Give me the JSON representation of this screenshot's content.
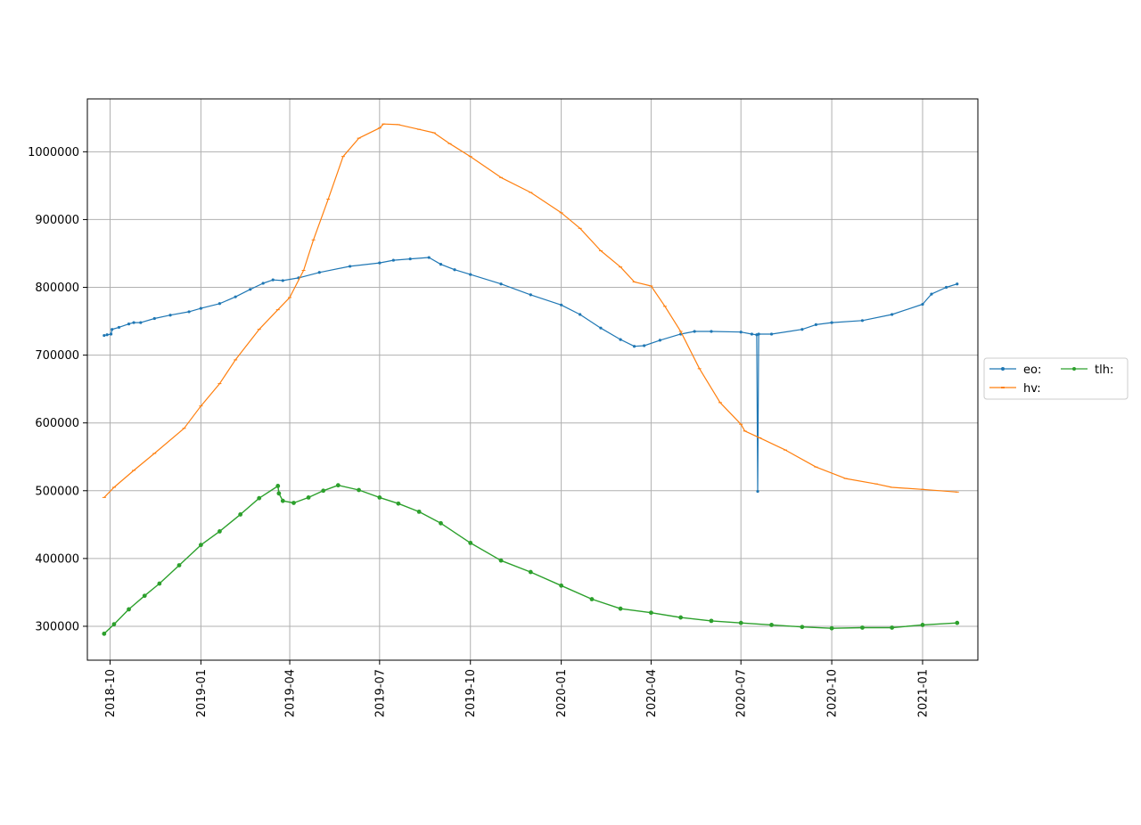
{
  "chart_data": {
    "type": "line",
    "title": "",
    "xlabel": "",
    "ylabel": "",
    "x_type": "date",
    "xlim": [
      "2018-09-08",
      "2021-02-26"
    ],
    "ylim": [
      250000,
      1078000
    ],
    "grid": true,
    "legend_placement": "outside-right",
    "legend_columns": 2,
    "x_ticks": [
      "2018-10",
      "2019-01",
      "2019-04",
      "2019-07",
      "2019-10",
      "2020-01",
      "2020-04",
      "2020-07",
      "2020-10",
      "2021-01"
    ],
    "y_ticks": [
      300000,
      400000,
      500000,
      600000,
      700000,
      800000,
      900000,
      1000000
    ],
    "series": [
      {
        "name": "eo:",
        "color": "#1f77b4",
        "marker": "dot",
        "points": [
          [
            "2018-09-25",
            729000
          ],
          [
            "2018-09-28",
            730000
          ],
          [
            "2018-10-02",
            731000
          ],
          [
            "2018-10-03",
            738000
          ],
          [
            "2018-10-10",
            741000
          ],
          [
            "2018-10-20",
            746000
          ],
          [
            "2018-10-25",
            748000
          ],
          [
            "2018-11-01",
            748000
          ],
          [
            "2018-11-15",
            754000
          ],
          [
            "2018-12-01",
            759000
          ],
          [
            "2018-12-20",
            764000
          ],
          [
            "2019-01-01",
            769000
          ],
          [
            "2019-01-20",
            776000
          ],
          [
            "2019-02-05",
            786000
          ],
          [
            "2019-02-20",
            797000
          ],
          [
            "2019-03-05",
            806000
          ],
          [
            "2019-03-15",
            811000
          ],
          [
            "2019-03-25",
            810000
          ],
          [
            "2019-04-10",
            814000
          ],
          [
            "2019-05-01",
            822000
          ],
          [
            "2019-06-01",
            831000
          ],
          [
            "2019-07-01",
            836000
          ],
          [
            "2019-07-15",
            840000
          ],
          [
            "2019-08-01",
            842000
          ],
          [
            "2019-08-20",
            844000
          ],
          [
            "2019-09-01",
            834000
          ],
          [
            "2019-09-15",
            826000
          ],
          [
            "2019-10-01",
            819000
          ],
          [
            "2019-11-01",
            805000
          ],
          [
            "2019-12-01",
            789000
          ],
          [
            "2020-01-01",
            774000
          ],
          [
            "2020-01-20",
            760000
          ],
          [
            "2020-02-10",
            740000
          ],
          [
            "2020-03-01",
            723000
          ],
          [
            "2020-03-15",
            713000
          ],
          [
            "2020-03-25",
            714000
          ],
          [
            "2020-04-10",
            722000
          ],
          [
            "2020-05-01",
            731000
          ],
          [
            "2020-05-15",
            735000
          ],
          [
            "2020-06-01",
            735000
          ],
          [
            "2020-07-01",
            734000
          ],
          [
            "2020-07-12",
            731000
          ],
          [
            "2020-07-17",
            730000
          ],
          [
            "2020-07-18",
            499000
          ],
          [
            "2020-07-19",
            731000
          ],
          [
            "2020-08-01",
            731000
          ],
          [
            "2020-09-01",
            738000
          ],
          [
            "2020-09-15",
            745000
          ],
          [
            "2020-10-01",
            748000
          ],
          [
            "2020-11-01",
            751000
          ],
          [
            "2020-12-01",
            760000
          ],
          [
            "2021-01-01",
            775000
          ],
          [
            "2021-01-10",
            790000
          ],
          [
            "2021-01-25",
            800000
          ],
          [
            "2021-02-05",
            805000
          ]
        ]
      },
      {
        "name": "hv:",
        "color": "#ff7f0e",
        "marker": "hline",
        "points": [
          [
            "2018-09-25",
            490000
          ],
          [
            "2018-10-05",
            505000
          ],
          [
            "2018-10-25",
            530000
          ],
          [
            "2018-11-15",
            555000
          ],
          [
            "2018-12-15",
            592000
          ],
          [
            "2019-01-01",
            625000
          ],
          [
            "2019-01-20",
            658000
          ],
          [
            "2019-02-05",
            693000
          ],
          [
            "2019-03-01",
            738000
          ],
          [
            "2019-03-20",
            767000
          ],
          [
            "2019-04-01",
            785000
          ],
          [
            "2019-04-15",
            825000
          ],
          [
            "2019-04-25",
            870000
          ],
          [
            "2019-05-10",
            930000
          ],
          [
            "2019-05-25",
            993000
          ],
          [
            "2019-06-10",
            1020000
          ],
          [
            "2019-07-01",
            1035000
          ],
          [
            "2019-07-05",
            1041000
          ],
          [
            "2019-07-20",
            1040000
          ],
          [
            "2019-08-10",
            1033000
          ],
          [
            "2019-08-25",
            1028000
          ],
          [
            "2019-09-10",
            1012000
          ],
          [
            "2019-10-01",
            993000
          ],
          [
            "2019-11-01",
            962000
          ],
          [
            "2019-12-01",
            940000
          ],
          [
            "2020-01-01",
            910000
          ],
          [
            "2020-01-20",
            887000
          ],
          [
            "2020-02-10",
            854000
          ],
          [
            "2020-03-01",
            830000
          ],
          [
            "2020-03-15",
            808000
          ],
          [
            "2020-04-01",
            802000
          ],
          [
            "2020-04-15",
            772000
          ],
          [
            "2020-05-01",
            735000
          ],
          [
            "2020-05-20",
            680000
          ],
          [
            "2020-06-10",
            630000
          ],
          [
            "2020-07-01",
            598000
          ],
          [
            "2020-07-05",
            588000
          ],
          [
            "2020-07-20",
            578000
          ],
          [
            "2020-08-15",
            560000
          ],
          [
            "2020-09-15",
            535000
          ],
          [
            "2020-10-15",
            518000
          ],
          [
            "2020-11-15",
            510000
          ],
          [
            "2020-12-01",
            505000
          ],
          [
            "2021-01-01",
            502000
          ],
          [
            "2021-02-05",
            498000
          ]
        ]
      },
      {
        "name": "tlh:",
        "color": "#2ca02c",
        "marker": "dot",
        "points": [
          [
            "2018-09-25",
            289000
          ],
          [
            "2018-10-05",
            303000
          ],
          [
            "2018-10-20",
            325000
          ],
          [
            "2018-11-05",
            345000
          ],
          [
            "2018-11-20",
            363000
          ],
          [
            "2018-12-10",
            390000
          ],
          [
            "2019-01-01",
            420000
          ],
          [
            "2019-01-20",
            440000
          ],
          [
            "2019-02-10",
            465000
          ],
          [
            "2019-03-01",
            489000
          ],
          [
            "2019-03-20",
            507000
          ],
          [
            "2019-03-21",
            496000
          ],
          [
            "2019-03-25",
            485000
          ],
          [
            "2019-04-05",
            482000
          ],
          [
            "2019-04-20",
            490000
          ],
          [
            "2019-05-05",
            500000
          ],
          [
            "2019-05-20",
            508000
          ],
          [
            "2019-06-10",
            501000
          ],
          [
            "2019-07-01",
            490000
          ],
          [
            "2019-07-20",
            481000
          ],
          [
            "2019-08-10",
            469000
          ],
          [
            "2019-09-01",
            452000
          ],
          [
            "2019-10-01",
            423000
          ],
          [
            "2019-11-01",
            397000
          ],
          [
            "2019-12-01",
            380000
          ],
          [
            "2020-01-01",
            360000
          ],
          [
            "2020-02-01",
            340000
          ],
          [
            "2020-03-01",
            326000
          ],
          [
            "2020-04-01",
            320000
          ],
          [
            "2020-05-01",
            313000
          ],
          [
            "2020-06-01",
            308000
          ],
          [
            "2020-07-01",
            305000
          ],
          [
            "2020-08-01",
            302000
          ],
          [
            "2020-09-01",
            299000
          ],
          [
            "2020-10-01",
            297000
          ],
          [
            "2020-11-01",
            298000
          ],
          [
            "2020-12-01",
            298000
          ],
          [
            "2021-01-01",
            302000
          ],
          [
            "2021-02-05",
            305000
          ]
        ]
      }
    ]
  }
}
